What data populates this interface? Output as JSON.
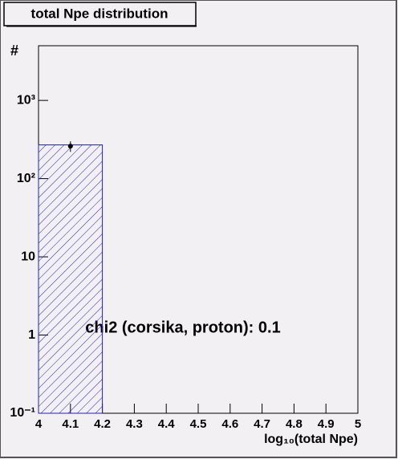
{
  "chart_data": {
    "type": "histogram",
    "title": "total Npe distribution",
    "xlabel": "log₁₀(total Npe)",
    "ylabel": "#",
    "annotation": "chi2 (corsika, proton): 0.1",
    "bins": [
      4,
      4.2
    ],
    "values": [
      270
    ],
    "color": "#2020c0",
    "points": {
      "x": [
        4.1
      ],
      "values": [
        260
      ],
      "errors": [
        40
      ],
      "color": "#000000"
    },
    "log_y": true,
    "xlim": [
      4,
      5
    ],
    "xticks": [
      4,
      4.1,
      4.2,
      4.3,
      4.4,
      4.5,
      4.6,
      4.7,
      4.8,
      4.9,
      5
    ],
    "ylim": [
      0.1,
      5000
    ],
    "yticks": [
      {
        "value": 0.1,
        "label": "10⁻¹"
      },
      1,
      10,
      {
        "value": 100,
        "label": "10²"
      },
      {
        "value": 1000,
        "label": "10³"
      }
    ]
  }
}
